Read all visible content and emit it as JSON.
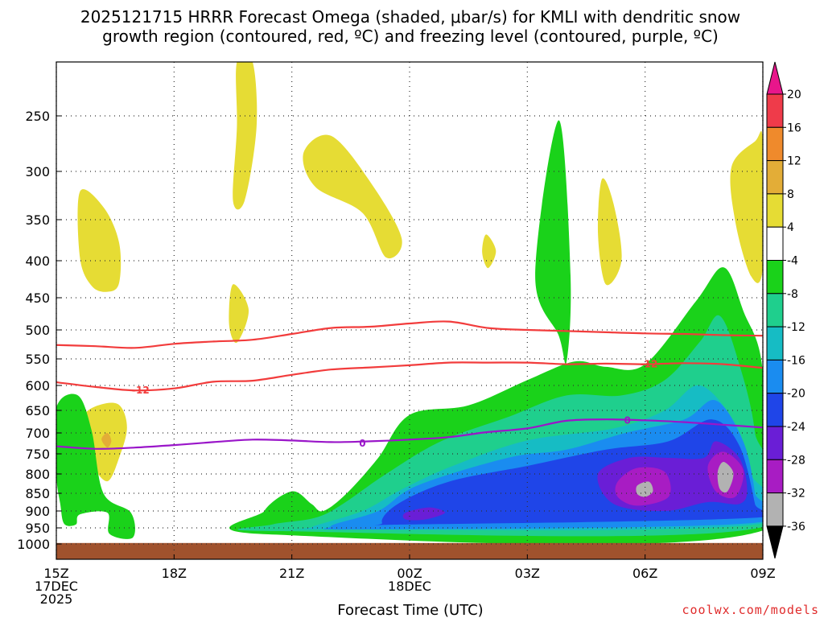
{
  "chart_data": {
    "type": "time-height cross section",
    "title_lines": [
      "2025121715 HRRR Forecast Omega (shaded, μbar/s) for KMLI with dendritic snow",
      "growth region (contoured, red, ºC) and freezing level (contoured, purple, ºC)"
    ],
    "xlabel": "Forecast Time (UTC)",
    "x_ticks": [
      {
        "hour": 0,
        "lines": [
          "15Z",
          "17DEC",
          "2025"
        ]
      },
      {
        "hour": 3,
        "lines": [
          "18Z"
        ]
      },
      {
        "hour": 6,
        "lines": [
          "21Z"
        ]
      },
      {
        "hour": 9,
        "lines": [
          "00Z",
          "18DEC"
        ]
      },
      {
        "hour": 12,
        "lines": [
          "03Z"
        ]
      },
      {
        "hour": 15,
        "lines": [
          "06Z"
        ]
      },
      {
        "hour": 18,
        "lines": [
          "09Z"
        ]
      }
    ],
    "xlim": [
      0,
      18
    ],
    "y_levels_hpa": [
      250,
      300,
      350,
      400,
      450,
      500,
      550,
      600,
      650,
      700,
      750,
      800,
      850,
      900,
      950,
      1000
    ],
    "ylim_hpa": [
      200,
      1050
    ],
    "ground_top_hpa": 997,
    "colorbar": {
      "unit": "μbar/s",
      "labels": [
        "20",
        "16",
        "12",
        "8",
        "4",
        "-4",
        "-8",
        "-12",
        "-16",
        "-20",
        "-24",
        "-28",
        "-32",
        "-36"
      ],
      "bins": [
        {
          "color": "#ef3b4a"
        },
        {
          "color": "#ef8a2c"
        },
        {
          "color": "#e3ad37"
        },
        {
          "color": "#e6dc34"
        },
        {
          "color": "#ffffff"
        },
        {
          "color": "#1ad21a"
        },
        {
          "color": "#1fcf8d"
        },
        {
          "color": "#16bcc4"
        },
        {
          "color": "#1a8cf0"
        },
        {
          "color": "#1f45e8"
        },
        {
          "color": "#6a1ed6"
        },
        {
          "color": "#a81cc3"
        },
        {
          "color": "#b2b2b2"
        }
      ],
      "top_arrow_color": "#e8168b",
      "bottom_arrow_color": "#000000"
    },
    "omega_regions": [
      {
        "level": 4,
        "color": "#e6dc34",
        "points": [
          [
            4.6,
            200
          ],
          [
            5,
            200
          ],
          [
            5.1,
            260
          ],
          [
            4.8,
            330
          ],
          [
            4.5,
            330
          ],
          [
            4.6,
            260
          ]
        ]
      },
      {
        "level": 4,
        "color": "#e6dc34",
        "points": [
          [
            6.3,
            283
          ],
          [
            7,
            268
          ],
          [
            8,
            311
          ],
          [
            8.8,
            373
          ],
          [
            8.4,
            396
          ],
          [
            7.8,
            343
          ],
          [
            6.6,
            316
          ]
        ]
      },
      {
        "level": 4,
        "color": "#e6dc34",
        "points": [
          [
            0.6,
            321
          ],
          [
            1.2,
            337
          ],
          [
            1.6,
            378
          ],
          [
            1.6,
            430
          ],
          [
            1.3,
            442
          ],
          [
            0.9,
            434
          ],
          [
            0.6,
            396
          ]
        ]
      },
      {
        "level": 4,
        "color": "#e6dc34",
        "points": [
          [
            4.5,
            432
          ],
          [
            4.9,
            469
          ],
          [
            4.6,
            522
          ],
          [
            4.4,
            490
          ]
        ]
      },
      {
        "level": 4,
        "color": "#e6dc34",
        "points": [
          [
            10.95,
            368
          ],
          [
            11.2,
            388
          ],
          [
            11,
            410
          ],
          [
            10.85,
            390
          ]
        ]
      },
      {
        "level": 4,
        "color": "#e6dc34",
        "points": [
          [
            13.9,
            308
          ],
          [
            14.2,
            334
          ],
          [
            14.4,
            399
          ],
          [
            14.0,
            432
          ],
          [
            13.8,
            367
          ]
        ]
      },
      {
        "level": 4,
        "color": "#e6dc34",
        "points": [
          [
            17.2,
            296
          ],
          [
            17.8,
            273
          ],
          [
            18,
            273
          ],
          [
            18,
            409
          ],
          [
            17.7,
            421
          ],
          [
            17.3,
            353
          ]
        ]
      },
      {
        "level": 4,
        "color": "#e6dc34",
        "points": [
          [
            0.7,
            662
          ],
          [
            1.1,
            639
          ],
          [
            1.6,
            639
          ],
          [
            1.8,
            688
          ],
          [
            1.6,
            760
          ],
          [
            1.3,
            819
          ],
          [
            0.9,
            775
          ],
          [
            0.7,
            718
          ]
        ]
      },
      {
        "level": 8,
        "color": "#e3ad37",
        "points": [
          [
            1.15,
            715
          ],
          [
            1.3,
            700
          ],
          [
            1.4,
            719
          ],
          [
            1.3,
            735
          ]
        ]
      },
      {
        "level": -4,
        "color": "#1ad21a",
        "points": [
          [
            12.2,
            420
          ],
          [
            12.8,
            254
          ],
          [
            13.1,
            420
          ],
          [
            13,
            555
          ],
          [
            12.8,
            510
          ]
        ]
      },
      {
        "level": -4,
        "color": "#1ad21a",
        "points": [
          [
            0,
            645
          ],
          [
            0.55,
            620
          ],
          [
            0.9,
            695
          ],
          [
            1.2,
            850
          ],
          [
            1.9,
            905
          ],
          [
            1.95,
            980
          ],
          [
            1.35,
            968
          ],
          [
            1.3,
            905
          ],
          [
            0.6,
            910
          ],
          [
            0.5,
            940
          ],
          [
            0.2,
            938
          ],
          [
            0.1,
            880
          ],
          [
            0,
            800
          ]
        ]
      },
      {
        "level": -4,
        "color": "#1ad21a",
        "points": [
          [
            5.3,
            900
          ],
          [
            6.0,
            845
          ],
          [
            6.5,
            880
          ],
          [
            6.8,
            900
          ],
          [
            7.4,
            850
          ],
          [
            8.2,
            760
          ],
          [
            9.0,
            660
          ],
          [
            10.5,
            640
          ],
          [
            12,
            590
          ],
          [
            13.2,
            555
          ],
          [
            14,
            565
          ],
          [
            15,
            560
          ],
          [
            16.3,
            455
          ],
          [
            17.0,
            409
          ],
          [
            17.5,
            470
          ],
          [
            18,
            575
          ],
          [
            18,
            958
          ],
          [
            5.4,
            970
          ]
        ]
      },
      {
        "level": -8,
        "color": "#1fcf8d",
        "points": [
          [
            5.5,
            940
          ],
          [
            6.6,
            920
          ],
          [
            7.3,
            880
          ],
          [
            8.4,
            800
          ],
          [
            9.8,
            720
          ],
          [
            11.5,
            665
          ],
          [
            13,
            620
          ],
          [
            14.4,
            620
          ],
          [
            15.5,
            590
          ],
          [
            16.4,
            520
          ],
          [
            16.9,
            478
          ],
          [
            17.4,
            560
          ],
          [
            17.8,
            700
          ],
          [
            17.9,
            950
          ],
          [
            5.6,
            960
          ]
        ]
      },
      {
        "level": -12,
        "color": "#16bcc4",
        "points": [
          [
            6.5,
            948
          ],
          [
            7.8,
            900
          ],
          [
            8.8,
            840
          ],
          [
            10.1,
            780
          ],
          [
            12,
            718
          ],
          [
            14.2,
            690
          ],
          [
            15.5,
            650
          ],
          [
            16.4,
            600
          ],
          [
            17.3,
            680
          ],
          [
            17.7,
            800
          ],
          [
            17.8,
            940
          ],
          [
            6.8,
            955
          ]
        ]
      },
      {
        "level": -16,
        "color": "#1a8cf0",
        "points": [
          [
            7,
            945
          ],
          [
            8.2,
            900
          ],
          [
            9.2,
            830
          ],
          [
            11.5,
            760
          ],
          [
            13,
            740
          ],
          [
            14.5,
            700
          ],
          [
            16.0,
            670
          ],
          [
            16.8,
            630
          ],
          [
            17.5,
            720
          ],
          [
            17.8,
            850
          ],
          [
            17.8,
            935
          ],
          [
            8,
            955
          ]
        ]
      },
      {
        "level": -20,
        "color": "#1f45e8",
        "points": [
          [
            8.3,
            935
          ],
          [
            8.7,
            880
          ],
          [
            10,
            820
          ],
          [
            12,
            780
          ],
          [
            14,
            740
          ],
          [
            15.6,
            720
          ],
          [
            16.7,
            670
          ],
          [
            17.4,
            730
          ],
          [
            17.8,
            880
          ],
          [
            17.8,
            920
          ],
          [
            9,
            940
          ]
        ]
      },
      {
        "level": -24,
        "color": "#6a1ed6",
        "points": [
          [
            13.8,
            800
          ],
          [
            14.6,
            760
          ],
          [
            15.6,
            760
          ],
          [
            16.5,
            760
          ],
          [
            16.8,
            720
          ],
          [
            17.4,
            760
          ],
          [
            17.6,
            840
          ],
          [
            17.4,
            880
          ],
          [
            16.6,
            875
          ],
          [
            15.5,
            900
          ],
          [
            14.2,
            880
          ]
        ]
      },
      {
        "level": -24,
        "color": "#6a1ed6",
        "points": [
          [
            8.9,
            905
          ],
          [
            9.5,
            890
          ],
          [
            9.9,
            905
          ],
          [
            9.4,
            925
          ],
          [
            8.9,
            925
          ]
        ]
      },
      {
        "level": -28,
        "color": "#a81cc3",
        "points": [
          [
            14.3,
            820
          ],
          [
            14.8,
            785
          ],
          [
            15.5,
            795
          ],
          [
            15.6,
            860
          ],
          [
            14.8,
            885
          ],
          [
            14.3,
            860
          ]
        ]
      },
      {
        "level": -28,
        "color": "#a81cc3",
        "points": [
          [
            16.6,
            780
          ],
          [
            17.0,
            745
          ],
          [
            17.5,
            790
          ],
          [
            17.3,
            860
          ],
          [
            16.8,
            845
          ]
        ]
      },
      {
        "level": -32,
        "color": "#b2b2b2",
        "points": [
          [
            14.8,
            830
          ],
          [
            15.1,
            820
          ],
          [
            15.2,
            845
          ],
          [
            15.0,
            860
          ],
          [
            14.8,
            852
          ]
        ]
      },
      {
        "level": -32,
        "color": "#b2b2b2",
        "points": [
          [
            16.85,
            795
          ],
          [
            17.0,
            770
          ],
          [
            17.25,
            798
          ],
          [
            17.1,
            845
          ],
          [
            16.9,
            838
          ]
        ]
      }
    ],
    "contours": [
      {
        "name": "-12C (dendritic top)",
        "color": "#f23c3c",
        "label": "",
        "points": [
          [
            0,
            526
          ],
          [
            1,
            528
          ],
          [
            2,
            531
          ],
          [
            3,
            524
          ],
          [
            4,
            520
          ],
          [
            5,
            517
          ],
          [
            6,
            507
          ],
          [
            7,
            497
          ],
          [
            8,
            495
          ],
          [
            9,
            490
          ],
          [
            10,
            487
          ],
          [
            11,
            497
          ],
          [
            12,
            500
          ],
          [
            13,
            502
          ],
          [
            14,
            504
          ],
          [
            15,
            506
          ],
          [
            16,
            507
          ],
          [
            17,
            509
          ],
          [
            18,
            510
          ]
        ]
      },
      {
        "name": "-12C (dendritic bottom)",
        "color": "#f23c3c",
        "label": "-12",
        "label_at": [
          2.15,
          610
        ],
        "label_at2": [
          15.1,
          560
        ],
        "points": [
          [
            0,
            594
          ],
          [
            1,
            603
          ],
          [
            2,
            610
          ],
          [
            3,
            606
          ],
          [
            4,
            593
          ],
          [
            5,
            591
          ],
          [
            6,
            580
          ],
          [
            7,
            570
          ],
          [
            8,
            566
          ],
          [
            9,
            562
          ],
          [
            10,
            557
          ],
          [
            11,
            557
          ],
          [
            12,
            557
          ],
          [
            13,
            560
          ],
          [
            14,
            559
          ],
          [
            15,
            560
          ],
          [
            16,
            558
          ],
          [
            17,
            560
          ],
          [
            18,
            567
          ]
        ]
      },
      {
        "name": "0C (freezing level)",
        "color": "#9a16c9",
        "label": "0",
        "label_at": [
          7.8,
          725
        ],
        "label_at2": [
          14.55,
          672
        ],
        "points": [
          [
            0,
            732
          ],
          [
            1,
            738
          ],
          [
            2,
            735
          ],
          [
            3,
            729
          ],
          [
            4,
            722
          ],
          [
            5,
            716
          ],
          [
            6,
            718
          ],
          [
            7,
            722
          ],
          [
            8,
            720
          ],
          [
            9,
            716
          ],
          [
            10,
            710
          ],
          [
            11,
            698
          ],
          [
            12,
            690
          ],
          [
            13,
            673
          ],
          [
            14,
            670
          ],
          [
            15,
            672
          ],
          [
            16,
            676
          ],
          [
            17,
            682
          ],
          [
            18,
            688
          ]
        ]
      }
    ]
  },
  "credit": "coolwx.com/models"
}
